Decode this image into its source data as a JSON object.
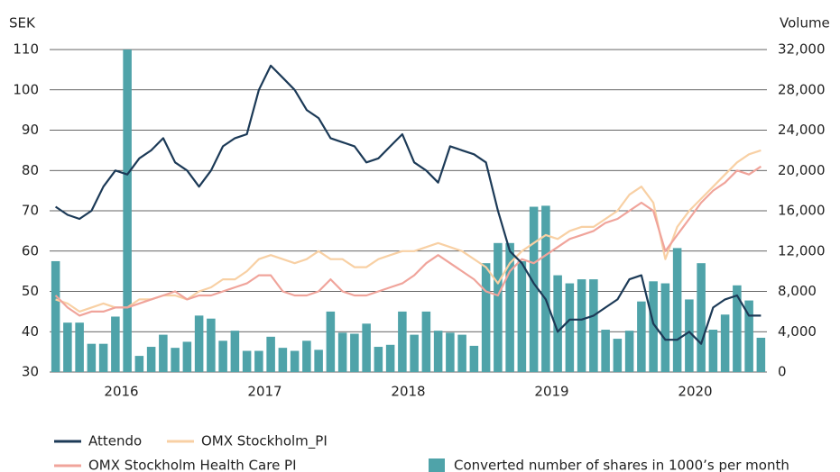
{
  "chart_data": {
    "type": "bar_line",
    "ylabel": "SEK",
    "y2label": "Volume",
    "ylim": [
      30,
      110
    ],
    "yticks": [
      30,
      40,
      50,
      60,
      70,
      80,
      90,
      100,
      110
    ],
    "y2lim": [
      0,
      32000
    ],
    "y2ticks": [
      0,
      {
        "value": 4000,
        "label": "4,000"
      },
      {
        "value": 8000,
        "label": "8,000"
      },
      {
        "value": 12000,
        "label": "12,000"
      },
      {
        "value": 16000,
        "label": "16,000"
      },
      {
        "value": 20000,
        "label": "20,000"
      },
      {
        "value": 24000,
        "label": "24,000"
      },
      {
        "value": 28000,
        "label": "28,000"
      },
      {
        "value": 32000,
        "label": "32,000"
      }
    ],
    "years": [
      "2016",
      "2017",
      "2018",
      "2019",
      "2020"
    ],
    "grid": true,
    "series": [
      {
        "name": "Converted number of shares in 1000’s per month",
        "kind": "bar",
        "axis": "y2",
        "color": "#4fa3a9",
        "values": [
          11000,
          4900,
          4900,
          2800,
          2800,
          5500,
          32000,
          1600,
          2500,
          3700,
          2400,
          3000,
          5600,
          5300,
          3100,
          4100,
          2100,
          2100,
          3500,
          2400,
          2100,
          3100,
          2200,
          6000,
          3900,
          3800,
          4800,
          2500,
          2700,
          6000,
          3700,
          6000,
          4100,
          3900,
          3700,
          2600,
          10800,
          12800,
          12800,
          11000,
          16400,
          16500,
          9600,
          8800,
          9200,
          9200,
          4200,
          3300,
          4100,
          7000,
          9000,
          8800,
          12300,
          7200,
          10800,
          4200,
          5700,
          8600,
          7100,
          3400
        ]
      },
      {
        "name": "OMX Stockholm_PI",
        "kind": "line",
        "color": "#f8d0a4",
        "values": [
          48,
          47,
          45,
          46,
          47,
          46,
          46,
          48,
          48,
          49,
          49,
          48,
          50,
          51,
          53,
          53,
          55,
          58,
          59,
          58,
          57,
          58,
          60,
          58,
          58,
          56,
          56,
          58,
          59,
          60,
          60,
          61,
          62,
          61,
          60,
          58,
          56,
          52,
          57,
          60,
          62,
          64,
          63,
          65,
          66,
          66,
          68,
          70,
          74,
          76,
          72,
          58,
          66,
          70,
          73,
          76,
          79,
          82,
          84,
          85
        ]
      },
      {
        "name": "OMX Stockholm Health Care PI",
        "kind": "line",
        "color": "#f0a49b",
        "values": [
          49,
          46,
          44,
          45,
          45,
          46,
          46,
          47,
          48,
          49,
          50,
          48,
          49,
          49,
          50,
          51,
          52,
          54,
          54,
          50,
          49,
          49,
          50,
          53,
          50,
          49,
          49,
          50,
          51,
          52,
          54,
          57,
          59,
          57,
          55,
          53,
          50,
          49,
          55,
          58,
          57,
          59,
          61,
          63,
          64,
          65,
          67,
          68,
          70,
          72,
          70,
          60,
          64,
          68,
          72,
          75,
          77,
          80,
          79,
          81
        ]
      },
      {
        "name": "Attendo",
        "kind": "line",
        "color": "#1c3a57",
        "values": [
          71,
          69,
          68,
          70,
          76,
          80,
          79,
          83,
          85,
          88,
          82,
          80,
          76,
          80,
          86,
          88,
          89,
          100,
          106,
          103,
          100,
          95,
          93,
          88,
          87,
          86,
          82,
          83,
          86,
          89,
          82,
          80,
          77,
          86,
          85,
          84,
          82,
          70,
          60,
          57,
          52,
          48,
          40,
          43,
          43,
          44,
          46,
          48,
          53,
          54,
          42,
          38,
          38,
          40,
          37,
          46,
          48,
          49,
          44,
          44
        ]
      }
    ]
  }
}
